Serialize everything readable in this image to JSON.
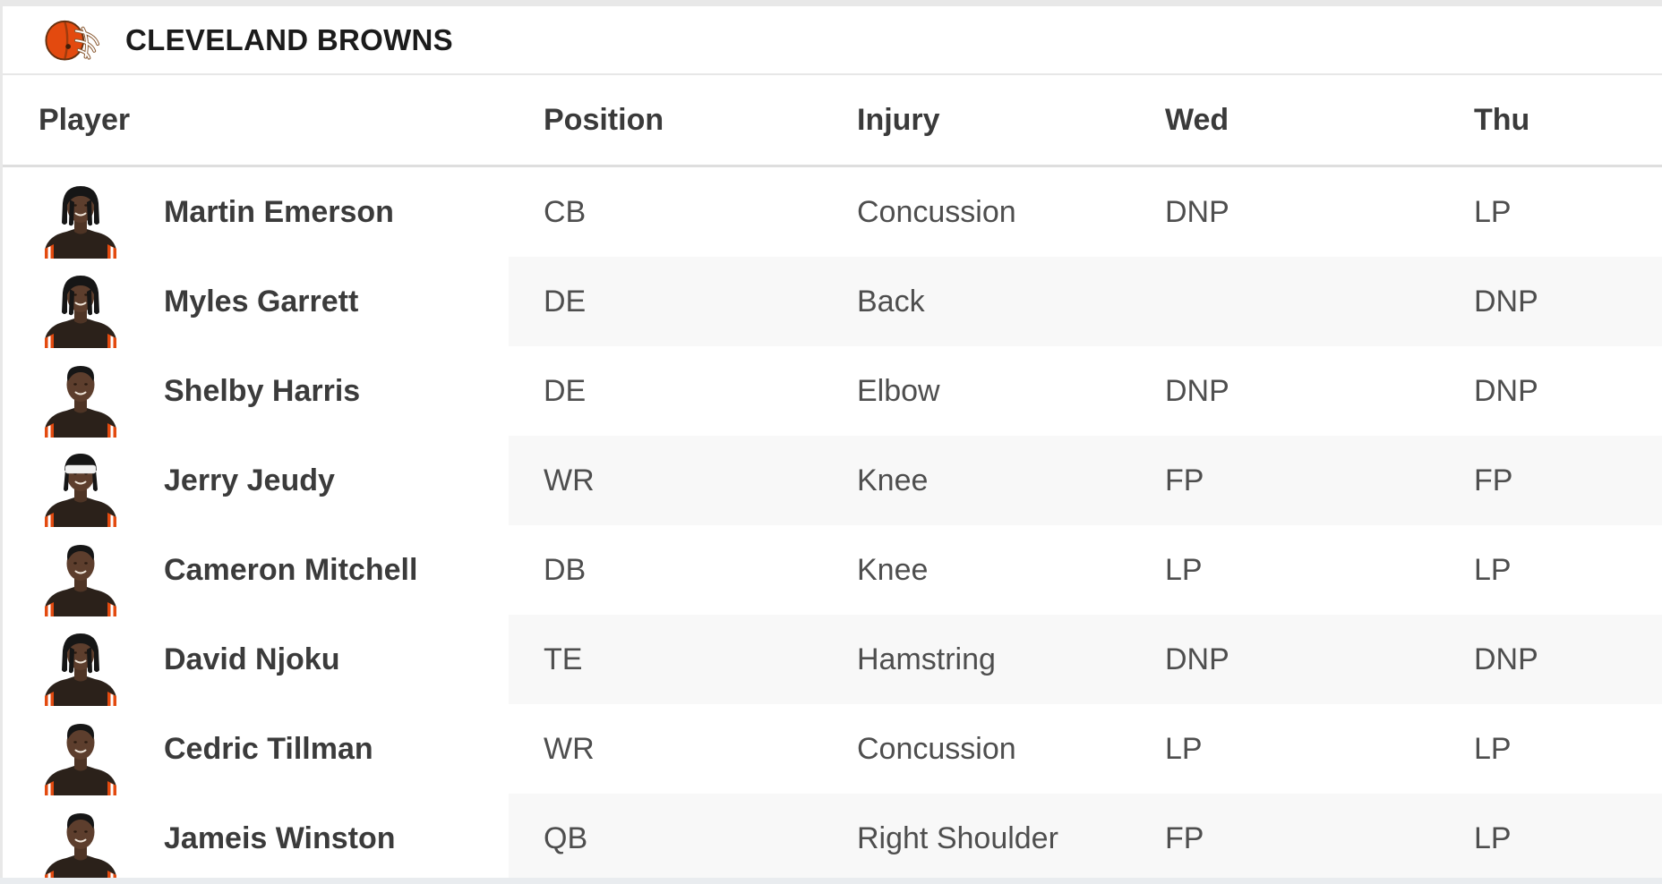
{
  "header": {
    "team_name": "CLEVELAND BROWNS",
    "logo_icon": "browns-helmet-icon"
  },
  "table": {
    "columns": [
      "Player",
      "Position",
      "Injury",
      "Wed",
      "Thu"
    ],
    "rows": [
      {
        "name": "Martin Emerson",
        "position": "CB",
        "injury": "Concussion",
        "wed": "DNP",
        "thu": "LP",
        "avatar": "dreads"
      },
      {
        "name": "Myles Garrett",
        "position": "DE",
        "injury": "Back",
        "wed": "",
        "thu": "DNP",
        "avatar": "dreads"
      },
      {
        "name": "Shelby Harris",
        "position": "DE",
        "injury": "Elbow",
        "wed": "DNP",
        "thu": "DNP",
        "avatar": "short"
      },
      {
        "name": "Jerry Jeudy",
        "position": "WR",
        "injury": "Knee",
        "wed": "FP",
        "thu": "FP",
        "avatar": "headband"
      },
      {
        "name": "Cameron Mitchell",
        "position": "DB",
        "injury": "Knee",
        "wed": "LP",
        "thu": "LP",
        "avatar": "short"
      },
      {
        "name": "David Njoku",
        "position": "TE",
        "injury": "Hamstring",
        "wed": "DNP",
        "thu": "DNP",
        "avatar": "dreads"
      },
      {
        "name": "Cedric Tillman",
        "position": "WR",
        "injury": "Concussion",
        "wed": "LP",
        "thu": "LP",
        "avatar": "short"
      },
      {
        "name": "Jameis Winston",
        "position": "QB",
        "injury": "Right Shoulder",
        "wed": "FP",
        "thu": "LP",
        "avatar": "short"
      }
    ]
  },
  "colors": {
    "team_orange": "#E34A0F",
    "helmet_outline": "#66300F",
    "jersey_brown": "#2B211A",
    "stripe_bg": "#F8F8F8",
    "divider": "#E7E7E7",
    "page_edge": "#E8E8E8",
    "bottom_band": "#E9ECEF"
  }
}
